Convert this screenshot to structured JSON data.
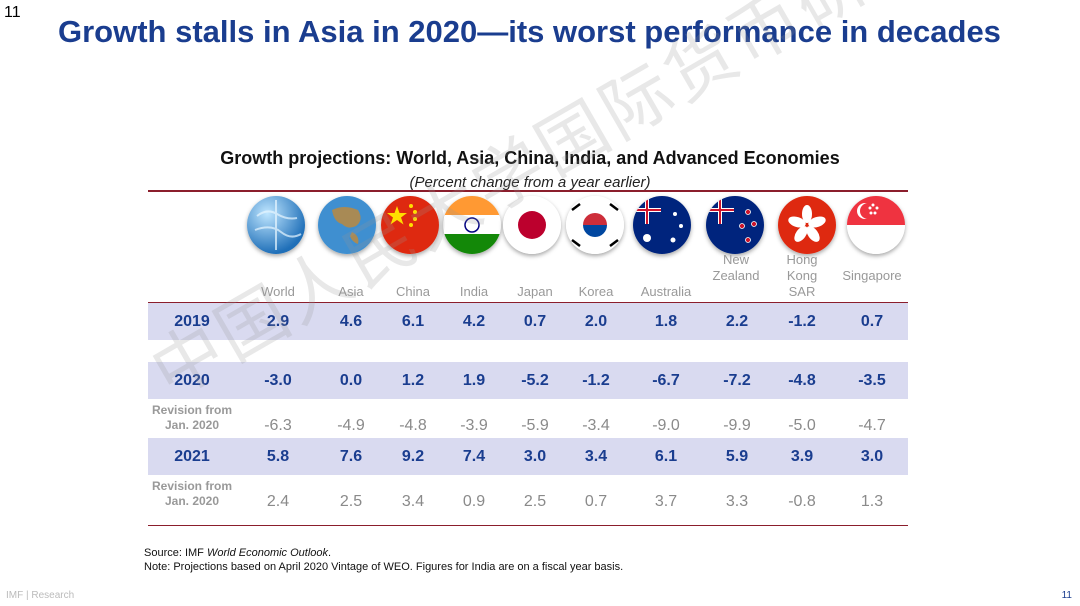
{
  "page_number": "11",
  "title": "Growth stalls in Asia in 2020—its worst performance in decades",
  "table": {
    "title": "Growth projections: World, Asia, China, India, and Advanced Economies",
    "subtitle": "(Percent change from a year earlier)",
    "columns": [
      "World",
      "Asia",
      "China",
      "India",
      "Japan",
      "Korea",
      "Australia",
      "New Zealand",
      "Hong Kong SAR",
      "Singapore"
    ],
    "rows": [
      {
        "label": "2019",
        "values": [
          "2.9",
          "4.6",
          "6.1",
          "4.2",
          "0.7",
          "2.0",
          "1.8",
          "2.2",
          "-1.2",
          "0.7"
        ]
      },
      {
        "label": "2020",
        "values": [
          "-3.0",
          "0.0",
          "1.2",
          "1.9",
          "-5.2",
          "-1.2",
          "-6.7",
          "-7.2",
          "-4.8",
          "-3.5"
        ]
      },
      {
        "label": "Revision from Jan. 2020",
        "values": [
          "-6.3",
          "-4.9",
          "-4.8",
          "-3.9",
          "-5.9",
          "-3.4",
          "-9.0",
          "-9.9",
          "-5.0",
          "-4.7"
        ]
      },
      {
        "label": "2021",
        "values": [
          "5.8",
          "7.6",
          "9.2",
          "7.4",
          "3.0",
          "3.4",
          "6.1",
          "5.9",
          "3.9",
          "3.0"
        ]
      },
      {
        "label": "Revision from Jan. 2020",
        "values": [
          "2.4",
          "2.5",
          "3.4",
          "0.9",
          "2.5",
          "0.7",
          "3.7",
          "3.3",
          "-0.8",
          "1.3"
        ]
      }
    ]
  },
  "source": {
    "prefix": "Source: IMF ",
    "publication": "World Economic Outlook",
    "suffix": ".",
    "note": "Note: Projections based on April 2020 Vintage of WEO. Figures for India are on a fiscal year basis."
  },
  "footer": {
    "left": "IMF | Research",
    "right": "11"
  },
  "watermark": "中国人民大学国际货币研究所",
  "colors": {
    "title": "#1a3d8f",
    "rule": "#8b1e2c",
    "band": "#d9daf0",
    "muted": "#999999"
  }
}
